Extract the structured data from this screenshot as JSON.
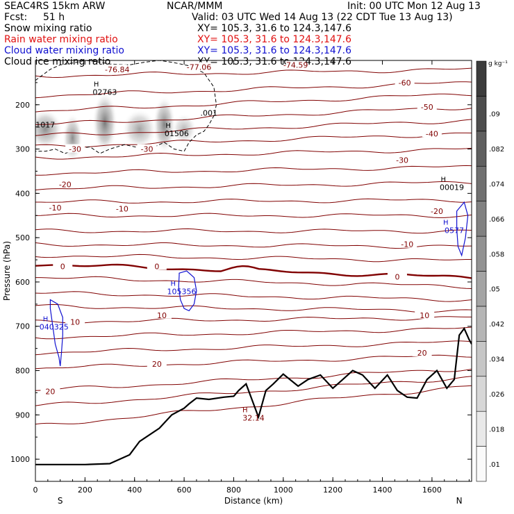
{
  "header": {
    "model": "SEAC4RS 15km ARW",
    "center": "NCAR/MMM",
    "init": "Init: 00 UTC Mon 12 Aug 13",
    "fcst_label": "Fcst:",
    "fcst_value": "51 h",
    "valid": "Valid: 03 UTC Wed 14 Aug 13 (22 CDT Tue 13 Aug 13)",
    "fields": [
      {
        "name": "Snow mixing ratio",
        "xy": "XY= 105.3, 31.6 to 124.3,147.6",
        "color": "#000000"
      },
      {
        "name": "Rain water mixing ratio",
        "xy": "XY= 105.3, 31.6 to 124.3,147.6",
        "color": "#e01010"
      },
      {
        "name": "Cloud water mixing ratio",
        "xy": "XY= 105.3, 31.6 to 124.3,147.6",
        "color": "#1010d0"
      },
      {
        "name": "Cloud ice mixing ratio",
        "xy": "XY= 105.3, 31.6 to 124.3,147.6",
        "color": "#000000"
      }
    ]
  },
  "chart_data": {
    "type": "cross-section",
    "xlabel": "Distance (km)",
    "ylabel": "Pressure (hPa)",
    "xlim": [
      0,
      1760
    ],
    "ylim": [
      1050,
      100
    ],
    "x_ticks": [
      0,
      200,
      400,
      600,
      800,
      1000,
      1200,
      1400,
      1600
    ],
    "y_ticks": [
      200,
      300,
      400,
      500,
      600,
      700,
      800,
      900,
      1000
    ],
    "end_labels": {
      "left": "S",
      "right": "N"
    },
    "colorbar": {
      "unit": "g kg⁻¹",
      "ticks": [
        ".01",
        ".018",
        ".026",
        ".034",
        ".042",
        ".05",
        ".058",
        ".066",
        ".074",
        ".082",
        ".09"
      ]
    },
    "temperature_labels": [
      {
        "text": "-77.06",
        "x": 660,
        "p": 115
      },
      {
        "text": "-76.84",
        "x": 330,
        "p": 120
      },
      {
        "text": "-74.59",
        "x": 1050,
        "p": 110
      },
      {
        "text": "-60",
        "x": 1490,
        "p": 150
      },
      {
        "text": "-50",
        "x": 1580,
        "p": 205
      },
      {
        "text": "-40",
        "x": 1600,
        "p": 265
      },
      {
        "text": "-30",
        "x": 1480,
        "p": 325
      },
      {
        "text": "-30",
        "x": 160,
        "p": 300
      },
      {
        "text": "-30",
        "x": 450,
        "p": 300
      },
      {
        "text": "-20",
        "x": 1620,
        "p": 440
      },
      {
        "text": "-20",
        "x": 120,
        "p": 380
      },
      {
        "text": "-10",
        "x": 1500,
        "p": 515
      },
      {
        "text": "-10",
        "x": 80,
        "p": 432
      },
      {
        "text": "-10",
        "x": 350,
        "p": 435
      },
      {
        "text": "0",
        "x": 110,
        "p": 565
      },
      {
        "text": "0",
        "x": 490,
        "p": 565
      },
      {
        "text": "0",
        "x": 1460,
        "p": 588
      },
      {
        "text": "10",
        "x": 160,
        "p": 690
      },
      {
        "text": "10",
        "x": 510,
        "p": 675
      },
      {
        "text": "10",
        "x": 1570,
        "p": 675
      },
      {
        "text": "20",
        "x": 490,
        "p": 785
      },
      {
        "text": "20",
        "x": 1560,
        "p": 760
      },
      {
        "text": "20",
        "x": 60,
        "p": 847
      }
    ],
    "extrema": [
      {
        "h": "H",
        "value": "02763",
        "x": 280,
        "p": 165,
        "color": "#000000"
      },
      {
        "h": "H",
        "value": "01506",
        "x": 570,
        "p": 258,
        "color": "#000000"
      },
      {
        "h": "H",
        "value": "00019",
        "x": 1680,
        "p": 380,
        "color": "#000000"
      },
      {
        "h": "H",
        "value": "0577",
        "x": 1690,
        "p": 477,
        "color": "#1010d0"
      },
      {
        "h": "H",
        "value": "105356",
        "x": 590,
        "p": 615,
        "color": "#1010d0"
      },
      {
        "h": "H",
        "value": "040325",
        "x": 75,
        "p": 695,
        "color": "#1010d0"
      },
      {
        "h": "H",
        "value": "32.14",
        "x": 880,
        "p": 900,
        "color": "#800000"
      }
    ],
    "other_labels": [
      {
        "text": "1017",
        "x": 40,
        "p": 245
      },
      {
        "text": ".001",
        "x": 700,
        "p": 218
      }
    ],
    "terrain": {
      "x": [
        0,
        100,
        200,
        300,
        380,
        420,
        500,
        550,
        600,
        620,
        650,
        700,
        760,
        800,
        820,
        850,
        870,
        900,
        930,
        960,
        1000,
        1060,
        1100,
        1150,
        1200,
        1240,
        1280,
        1320,
        1370,
        1420,
        1460,
        1500,
        1540,
        1580,
        1620,
        1660,
        1690,
        1710,
        1730,
        1750,
        1760
      ],
      "p": [
        1012,
        1012,
        1012,
        1010,
        990,
        960,
        930,
        900,
        885,
        875,
        862,
        865,
        860,
        858,
        845,
        830,
        860,
        905,
        845,
        830,
        808,
        835,
        820,
        810,
        840,
        820,
        800,
        810,
        840,
        810,
        845,
        860,
        862,
        820,
        800,
        840,
        820,
        720,
        705,
        730,
        740
      ]
    },
    "isotherms": [
      {
        "p0": 135,
        "p1": 120
      },
      {
        "p0": 180,
        "p1": 150
      },
      {
        "p0": 215,
        "p1": 175
      },
      {
        "p0": 245,
        "p1": 205
      },
      {
        "p0": 270,
        "p1": 235
      },
      {
        "p0": 295,
        "p1": 265
      },
      {
        "p0": 320,
        "p1": 300
      },
      {
        "p0": 355,
        "p1": 340
      },
      {
        "p0": 390,
        "p1": 375
      },
      {
        "p0": 420,
        "p1": 415
      },
      {
        "p0": 450,
        "p1": 450
      },
      {
        "p0": 485,
        "p1": 485
      },
      {
        "p0": 515,
        "p1": 520
      },
      {
        "p0": 540,
        "p1": 552
      },
      {
        "p0": 560,
        "p1": 590,
        "freezing": true
      },
      {
        "p0": 590,
        "p1": 610
      },
      {
        "p0": 625,
        "p1": 640
      },
      {
        "p0": 655,
        "p1": 665
      },
      {
        "p0": 690,
        "p1": 680
      },
      {
        "p0": 725,
        "p1": 705
      },
      {
        "p0": 760,
        "p1": 735
      },
      {
        "p0": 795,
        "p1": 765
      },
      {
        "p0": 845,
        "p1": 795
      },
      {
        "p0": 880,
        "p1": 815
      },
      {
        "p0": 925,
        "p1": 835
      }
    ],
    "snow_blobs": [
      {
        "x": 40,
        "p": 255,
        "rx": 70,
        "rp": 45,
        "alpha": 0.55
      },
      {
        "x": 150,
        "p": 275,
        "rx": 40,
        "rp": 55,
        "alpha": 0.55
      },
      {
        "x": 280,
        "p": 240,
        "rx": 50,
        "rp": 70,
        "alpha": 0.65
      },
      {
        "x": 420,
        "p": 255,
        "rx": 70,
        "rp": 45,
        "alpha": 0.45
      },
      {
        "x": 520,
        "p": 245,
        "rx": 45,
        "rp": 65,
        "alpha": 0.6
      },
      {
        "x": 600,
        "p": 255,
        "rx": 50,
        "rp": 35,
        "alpha": 0.35
      }
    ],
    "ice_contour": {
      "x": [
        0,
        60,
        100,
        160,
        200,
        240,
        300,
        380,
        440,
        500,
        560,
        620,
        680,
        720,
        730,
        720,
        700,
        680,
        650,
        620,
        600,
        560,
        520,
        480,
        440,
        400,
        360,
        300,
        260,
        220,
        160,
        120,
        80,
        40,
        0
      ],
      "p": [
        145,
        120,
        110,
        105,
        100,
        102,
        108,
        110,
        104,
        100,
        105,
        112,
        128,
        160,
        200,
        225,
        245,
        260,
        268,
        285,
        305,
        300,
        285,
        295,
        300,
        295,
        290,
        300,
        310,
        295,
        300,
        310,
        300,
        305,
        305
      ]
    },
    "cloud_water_contours": [
      {
        "x": [
          60,
          90,
          110,
          110,
          105,
          100,
          95,
          80,
          70,
          60
        ],
        "p": [
          640,
          650,
          680,
          720,
          760,
          790,
          770,
          740,
          700,
          660
        ]
      },
      {
        "x": [
          580,
          610,
          640,
          650,
          640,
          620,
          600,
          585,
          578,
          580
        ],
        "p": [
          580,
          575,
          590,
          620,
          650,
          665,
          660,
          640,
          610,
          585
        ]
      },
      {
        "x": [
          1700,
          1730,
          1745,
          1735,
          1720,
          1705,
          1700
        ],
        "p": [
          440,
          420,
          450,
          500,
          540,
          520,
          480
        ]
      }
    ]
  }
}
